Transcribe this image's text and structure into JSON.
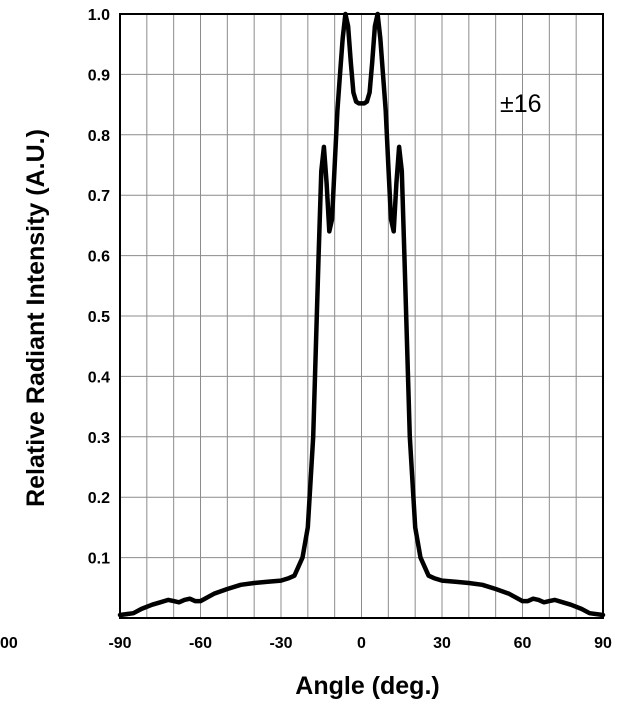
{
  "chart_data": {
    "type": "line",
    "title": "",
    "xlabel": "Angle (deg.)",
    "ylabel": "Relative Radiant Intensity (A.U.)",
    "xlim": [
      -90,
      90
    ],
    "ylim": [
      0,
      1.0
    ],
    "x_ticks": [
      -90,
      -60,
      -30,
      0,
      30,
      60,
      90
    ],
    "x_tick_labels": [
      "-90",
      "-60",
      "-30",
      "0",
      "30",
      "60",
      "90"
    ],
    "y_ticks": [
      0.1,
      0.2,
      0.3,
      0.4,
      0.5,
      0.6,
      0.7,
      0.8,
      0.9,
      1.0
    ],
    "y_tick_labels": [
      "0.1",
      "0.2",
      "0.3",
      "0.4",
      "0.5",
      "0.6",
      "0.7",
      "0.8",
      "0.9",
      "1.0"
    ],
    "grid": true,
    "annotation": "±16",
    "edge_labels": [
      "00"
    ],
    "series": [
      {
        "x": [
          -90,
          -85,
          -82,
          -78,
          -75,
          -72,
          -70,
          -68,
          -66,
          -64,
          -62,
          -60,
          -55,
          -50,
          -45,
          -40,
          -35,
          -30,
          -27,
          -25,
          -22,
          -20,
          -18,
          -17,
          -16,
          -15,
          -14,
          -13,
          -12,
          -11,
          -10,
          -9,
          -8,
          -7,
          -6,
          -5,
          -4,
          -3,
          -2,
          -1,
          0,
          1,
          2,
          3,
          4,
          5,
          6,
          7,
          8,
          9,
          10,
          11,
          12,
          13,
          14,
          15,
          16,
          17,
          18,
          20,
          22,
          25,
          27,
          30,
          35,
          40,
          45,
          50,
          55,
          60,
          62,
          64,
          66,
          68,
          70,
          72,
          75,
          78,
          82,
          85,
          90
        ],
        "y": [
          0.005,
          0.008,
          0.015,
          0.022,
          0.026,
          0.03,
          0.028,
          0.026,
          0.03,
          0.032,
          0.028,
          0.028,
          0.04,
          0.048,
          0.055,
          0.058,
          0.06,
          0.062,
          0.066,
          0.07,
          0.1,
          0.15,
          0.3,
          0.45,
          0.6,
          0.74,
          0.78,
          0.72,
          0.64,
          0.66,
          0.75,
          0.84,
          0.9,
          0.96,
          1.0,
          0.98,
          0.92,
          0.87,
          0.855,
          0.852,
          0.852,
          0.852,
          0.855,
          0.87,
          0.92,
          0.98,
          1.0,
          0.96,
          0.9,
          0.84,
          0.75,
          0.66,
          0.64,
          0.72,
          0.78,
          0.74,
          0.6,
          0.45,
          0.3,
          0.15,
          0.1,
          0.07,
          0.066,
          0.062,
          0.06,
          0.058,
          0.055,
          0.048,
          0.04,
          0.028,
          0.028,
          0.032,
          0.03,
          0.026,
          0.028,
          0.03,
          0.026,
          0.022,
          0.015,
          0.008,
          0.005
        ]
      }
    ]
  }
}
